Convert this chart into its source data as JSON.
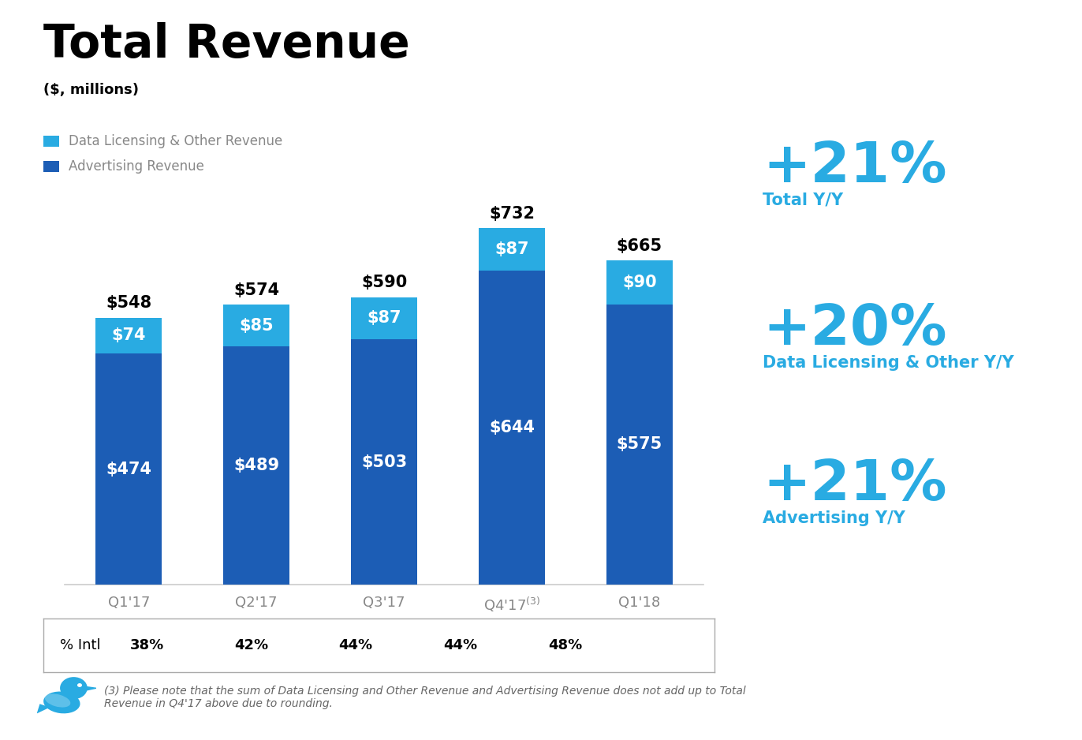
{
  "title": "Total Revenue",
  "subtitle": "($, millions)",
  "advertising_values": [
    474,
    489,
    503,
    644,
    575
  ],
  "data_licensing_values": [
    74,
    85,
    87,
    87,
    90
  ],
  "totals": [
    548,
    574,
    590,
    732,
    665
  ],
  "intl_pct": [
    "38%",
    "42%",
    "44%",
    "44%",
    "48%"
  ],
  "advertising_color": "#1C5DB5",
  "data_licensing_color": "#29ABE2",
  "background_color": "#FFFFFF",
  "title_fontsize": 42,
  "subtitle_fontsize": 13,
  "bar_label_fontsize": 15,
  "total_label_fontsize": 15,
  "tick_fontsize": 13,
  "legend_fontsize": 12,
  "stats_large_fontsize": 52,
  "stats_small_fontsize": 15,
  "stats_color": "#29ABE2",
  "annotation_note": "(3) Please note that the sum of Data Licensing and Other Revenue and Advertising Revenue does not add up to Total\nRevenue in Q4'17 above due to rounding.",
  "legend_data_licensing": "Data Licensing & Other Revenue",
  "legend_advertising": "Advertising Revenue",
  "stats": [
    {
      "value": "+21%",
      "label": "Total Y/Y"
    },
    {
      "value": "+20%",
      "label": "Data Licensing & Other Y/Y"
    },
    {
      "value": "+21%",
      "label": "Advertising Y/Y"
    }
  ],
  "intl_label": "% Intl",
  "ylim": [
    0,
    820
  ],
  "q4_label": "Q4'17"
}
